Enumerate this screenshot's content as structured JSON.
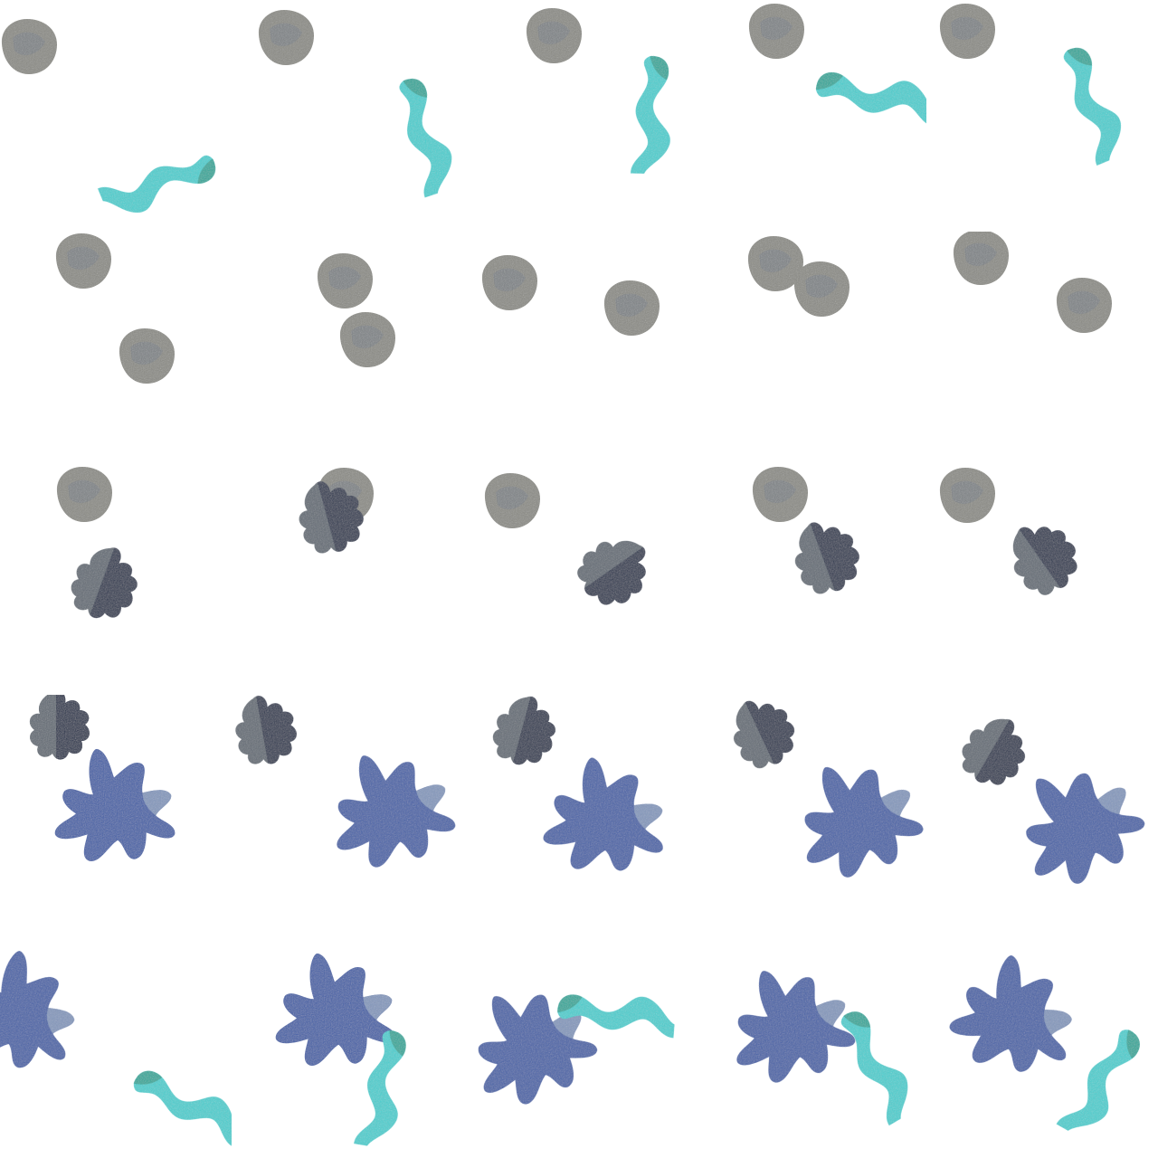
{
  "grid": {
    "rows": 5,
    "cols": 5
  },
  "colors": {
    "background": "#ffffff",
    "pebble": "#8a8a84",
    "pebble_speck": "#5a6a88",
    "cyan_ribbon": "#3fd0d0",
    "cyan_dark": "#1fa89a",
    "star_gray": "#5f6872",
    "star_navy": "#1d2a48",
    "blob_blue": "#3f5fa8",
    "blob_light": "#9aa9c4"
  },
  "shapes": [
    "gray-pebble",
    "cyan-ribbon",
    "slate-star",
    "blue-blob"
  ]
}
